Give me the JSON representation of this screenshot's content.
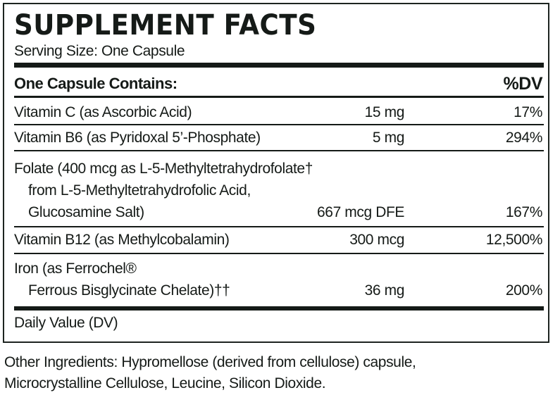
{
  "title": "SUPPLEMENT FACTS",
  "serving_size": "Serving Size: One Capsule",
  "header": {
    "contains": "One Capsule Contains:",
    "dv": "%DV"
  },
  "rows": [
    {
      "lines": [
        "Vitamin C (as Ascorbic Acid)"
      ],
      "amount": "15 mg",
      "dv": "17%"
    },
    {
      "lines": [
        "Vitamin B6 (as Pyridoxal 5’-Phosphate)"
      ],
      "amount": "5 mg",
      "dv": "294%"
    },
    {
      "lines": [
        "Folate (400 mcg as L-5-Methyltetrahydrofolate†",
        "from L-5-Methyltetrahydrofolic Acid,",
        "Glucosamine Salt)"
      ],
      "amount": "667 mcg DFE",
      "dv": "167%"
    },
    {
      "lines": [
        "Vitamin B12 (as Methylcobalamin)"
      ],
      "amount": "300 mcg",
      "dv": "12,500%"
    },
    {
      "lines": [
        "Iron (as Ferrochel®",
        "Ferrous Bisglycinate Chelate)††"
      ],
      "amount": "36 mg",
      "dv": "200%"
    }
  ],
  "footnote": "Daily Value (DV)",
  "other_ingredients": [
    "Other Ingredients: Hypromellose (derived from cellulose) capsule,",
    "Microcrystalline Cellulose, Leucine, Silicon Dioxide."
  ]
}
